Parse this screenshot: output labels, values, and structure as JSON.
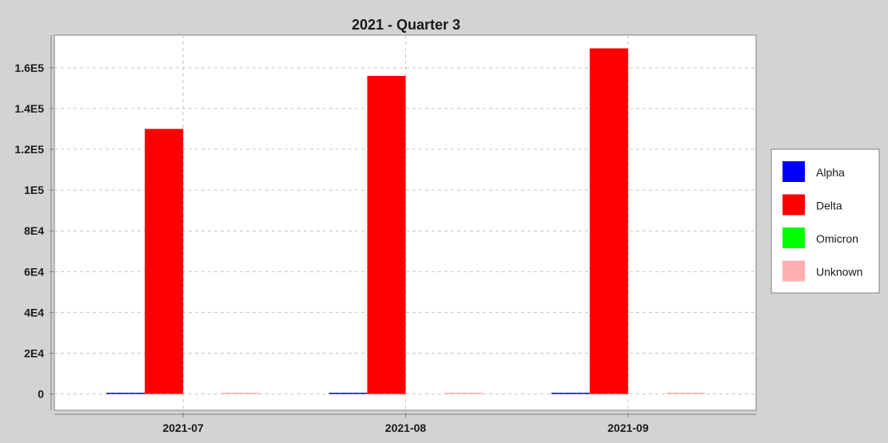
{
  "chart_data": {
    "type": "bar",
    "title": "2021 - Quarter 3",
    "xlabel": "",
    "ylabel": "",
    "categories": [
      "2021-07",
      "2021-08",
      "2021-09"
    ],
    "series": [
      {
        "name": "Alpha",
        "color": "#0000ff",
        "values": [
          350,
          60,
          20
        ]
      },
      {
        "name": "Delta",
        "color": "#ff0000",
        "values": [
          130000,
          156000,
          169500
        ]
      },
      {
        "name": "Omicron",
        "color": "#00ff00",
        "values": [
          0,
          0,
          0
        ]
      },
      {
        "name": "Unknown",
        "color": "#ffafaf",
        "values": [
          80,
          60,
          40
        ]
      }
    ],
    "ylim": [
      -8000,
      176000
    ],
    "yticks": [
      0,
      20000,
      40000,
      60000,
      80000,
      100000,
      120000,
      140000,
      160000
    ],
    "ytick_labels": [
      "0",
      "2E4",
      "4E4",
      "6E4",
      "8E4",
      "1E5",
      "1.2E5",
      "1.4E5",
      "1.6E5"
    ],
    "grid": true,
    "legend_position": "right"
  }
}
